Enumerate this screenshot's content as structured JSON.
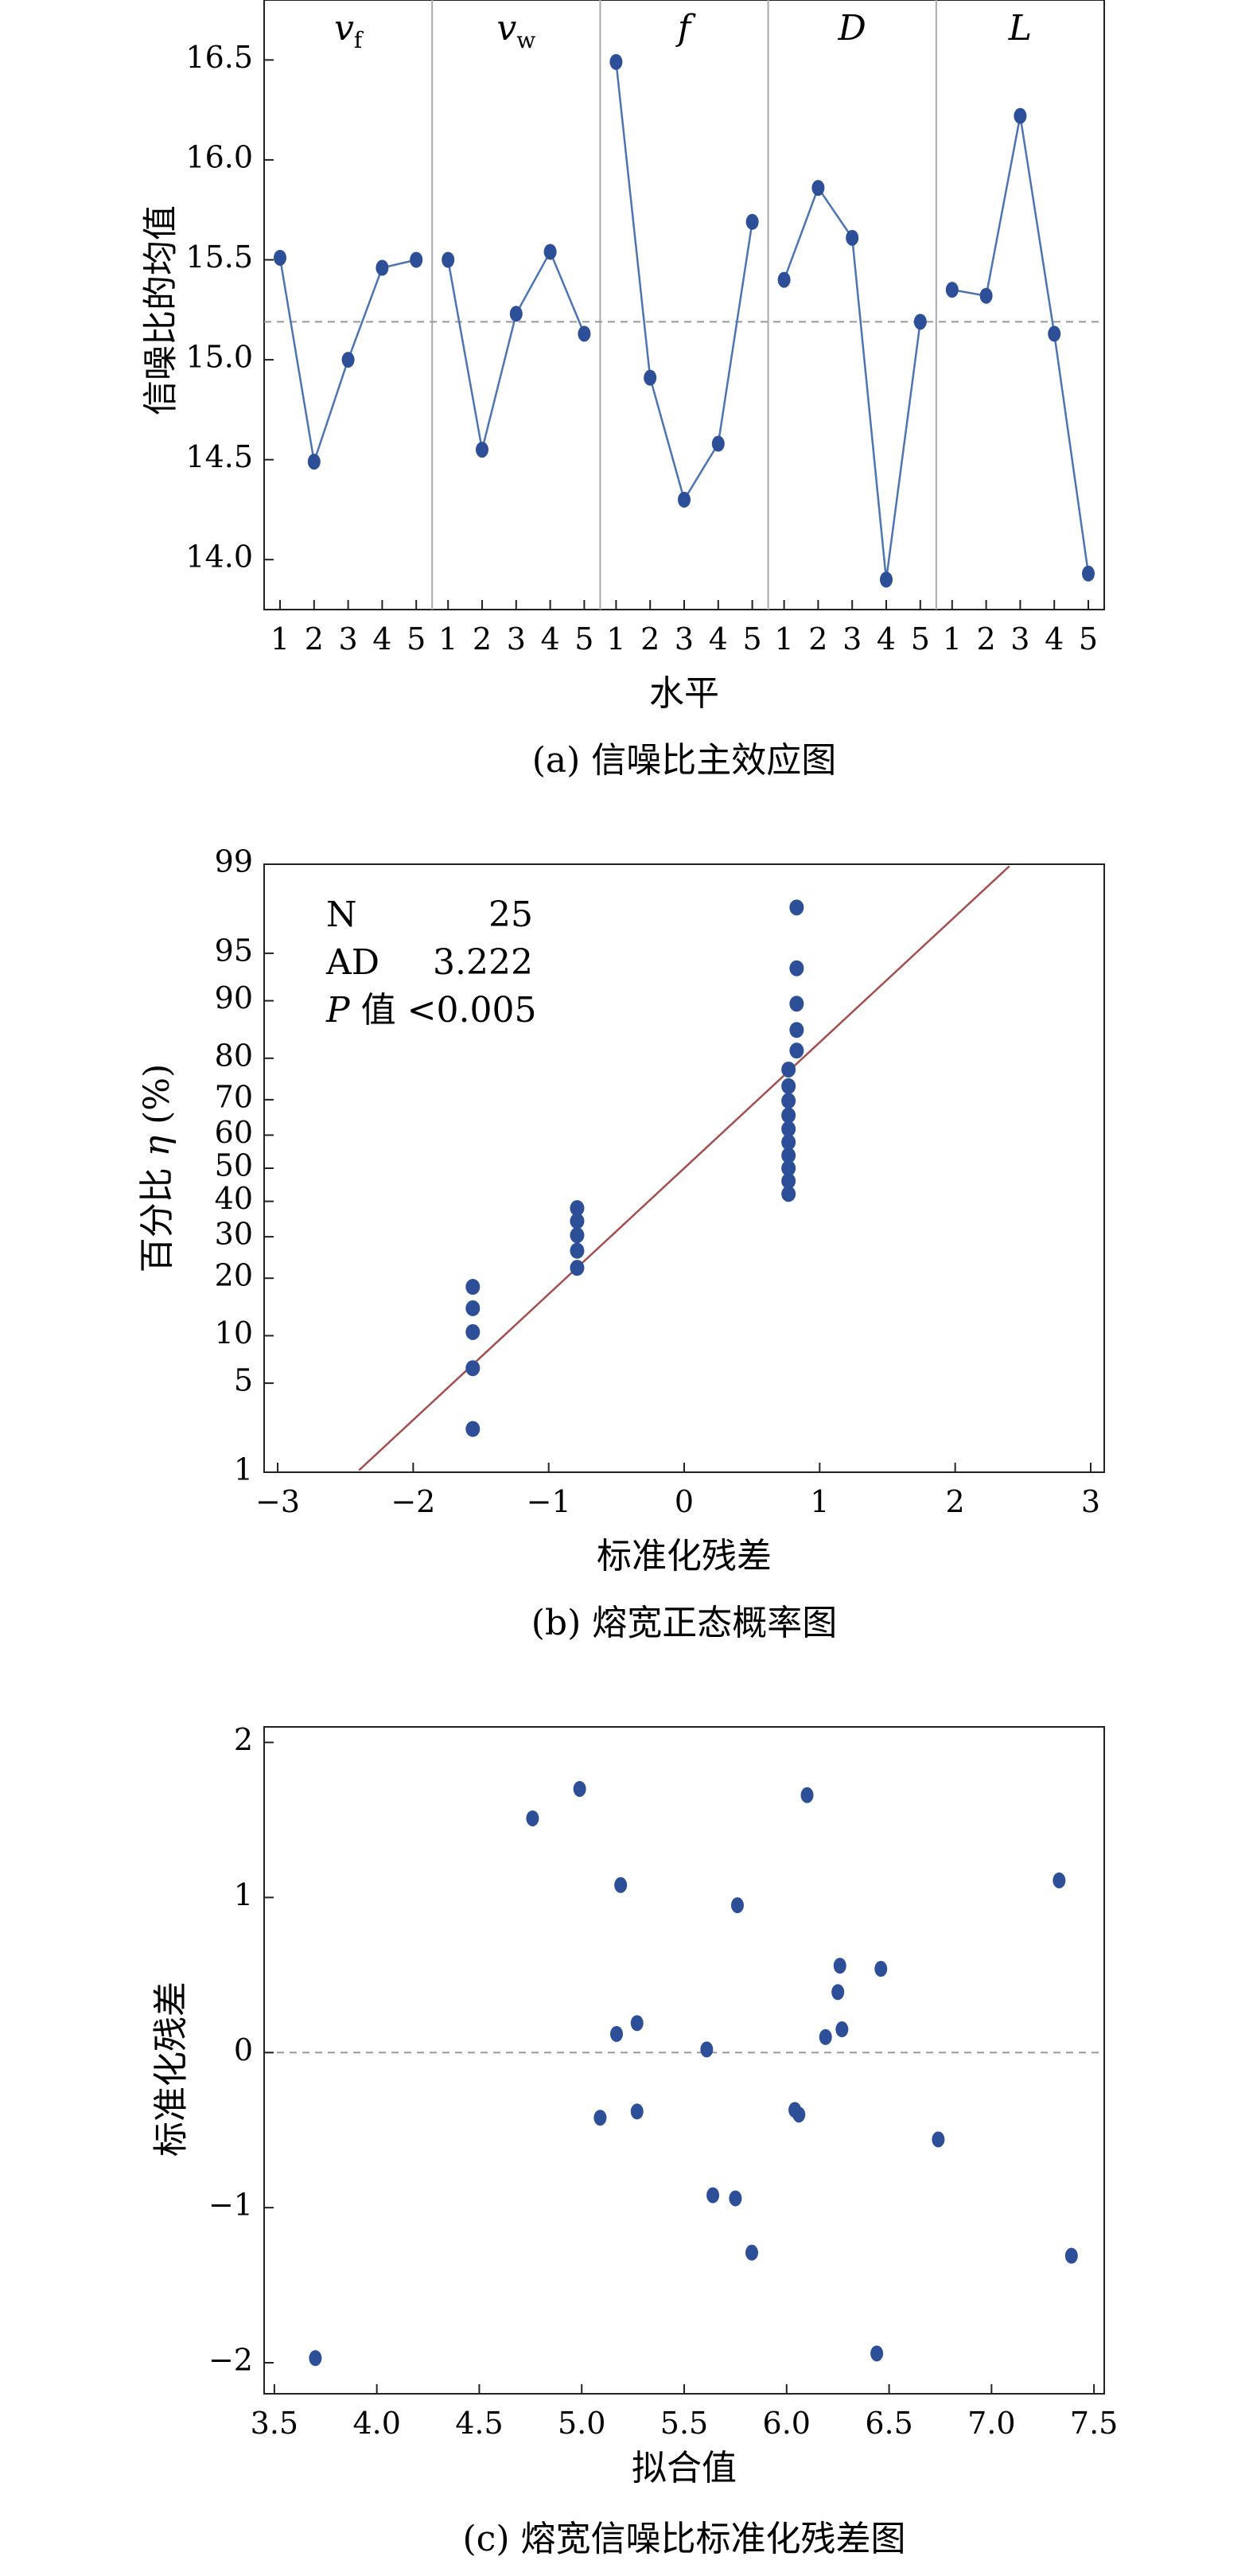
{
  "colors": {
    "marker": "#2d4f97",
    "line": "#4d74b0",
    "ref_line": "#999999",
    "fit_line": "#a05050",
    "divider": "#aaaaaa"
  },
  "chart_data": [
    {
      "type": "line",
      "panel": "a",
      "caption": "(a) 信噪比主效应图",
      "xlabel": "水平",
      "ylabel": "信噪比的均值",
      "ylim": [
        13.75,
        16.8
      ],
      "y_ticks": [
        "14.0",
        "14.5",
        "15.0",
        "15.5",
        "16.0",
        "16.5"
      ],
      "level_labels": [
        "1",
        "2",
        "3",
        "4",
        "5"
      ],
      "reference_line": 15.19,
      "factors": [
        {
          "name": "v",
          "sub": "f",
          "values": [
            15.51,
            14.49,
            15.0,
            15.46,
            15.5
          ]
        },
        {
          "name": "v",
          "sub": "w",
          "values": [
            15.5,
            14.55,
            15.23,
            15.54,
            15.13
          ]
        },
        {
          "name": "f",
          "sub": "",
          "values": [
            16.49,
            14.91,
            14.3,
            14.58,
            15.69
          ]
        },
        {
          "name": "D",
          "sub": "",
          "values": [
            15.4,
            15.86,
            15.61,
            13.9,
            15.19
          ]
        },
        {
          "name": "L",
          "sub": "",
          "values": [
            15.35,
            15.32,
            16.22,
            15.13,
            13.93
          ]
        }
      ]
    },
    {
      "type": "scatter",
      "panel": "b",
      "caption": "(b) 熔宽正态概率图",
      "xlabel": "标准化残差",
      "ylabel": "百分比",
      "ylabel_symbol": "η",
      "ylabel_unit": "(%)",
      "xlim": [
        -3.1,
        3.1
      ],
      "x_ticks": [
        -3,
        -2,
        -1,
        0,
        1,
        2,
        3
      ],
      "x_tick_labels": [
        "−3",
        "−2",
        "−1",
        "0",
        "1",
        "2",
        "3"
      ],
      "y_scale": "normal-probability",
      "y_ticks": [
        1,
        5,
        10,
        20,
        30,
        40,
        50,
        60,
        70,
        80,
        90,
        95,
        99
      ],
      "y_tick_labels": [
        "1",
        "5",
        "10",
        "20",
        "30",
        "40",
        "50",
        "60",
        "70",
        "80",
        "90",
        "95",
        "99"
      ],
      "stats": [
        {
          "label": "N",
          "value": "25"
        },
        {
          "label": "AD",
          "value": "3.222"
        },
        {
          "label": "P",
          "label_suffix": " 值",
          "value": "<0.005"
        }
      ],
      "fit_line": {
        "x": [
          -2.4,
          2.4
        ],
        "y": [
          1.04,
          98.96
        ]
      },
      "points": [
        {
          "x": -1.56,
          "y": [
            2.3,
            6.3,
            10.5,
            14.2,
            18.2
          ]
        },
        {
          "x": -0.79,
          "y": [
            22.3,
            26.4,
            30.4,
            34.3,
            38.0
          ]
        },
        {
          "x": 0.77,
          "y": [
            42.2,
            46.1,
            50.0,
            53.9,
            57.9,
            61.8,
            65.7,
            69.7,
            73.5,
            77.5
          ]
        },
        {
          "x": 0.83,
          "y": [
            81.6,
            85.5,
            89.6,
            93.7,
            97.7
          ]
        }
      ]
    },
    {
      "type": "scatter",
      "panel": "c",
      "caption": "(c) 熔宽信噪比标准化残差图",
      "xlabel": "拟合值",
      "ylabel": "标准化残差",
      "xlim": [
        3.45,
        7.55
      ],
      "ylim": [
        -2.2,
        2.1
      ],
      "x_ticks": [
        "3.5",
        "4.0",
        "4.5",
        "5.0",
        "5.5",
        "6.0",
        "6.5",
        "7.0",
        "7.5"
      ],
      "y_ticks": [
        -2,
        -1,
        0,
        1,
        2
      ],
      "y_tick_labels": [
        "−2",
        "−1",
        "0",
        "1",
        "2"
      ],
      "reference_line": 0,
      "points": [
        [
          3.7,
          -1.97
        ],
        [
          4.76,
          1.51
        ],
        [
          4.99,
          1.7
        ],
        [
          5.09,
          -0.42
        ],
        [
          5.17,
          0.12
        ],
        [
          5.19,
          1.08
        ],
        [
          5.27,
          0.19
        ],
        [
          5.27,
          -0.38
        ],
        [
          5.61,
          0.02
        ],
        [
          5.64,
          -0.92
        ],
        [
          5.75,
          -0.94
        ],
        [
          5.76,
          0.95
        ],
        [
          5.83,
          -1.29
        ],
        [
          6.04,
          -0.37
        ],
        [
          6.06,
          -0.4
        ],
        [
          6.1,
          1.66
        ],
        [
          6.19,
          0.1
        ],
        [
          6.25,
          0.39
        ],
        [
          6.26,
          0.56
        ],
        [
          6.27,
          0.15
        ],
        [
          6.44,
          -1.94
        ],
        [
          6.46,
          0.54
        ],
        [
          6.74,
          -0.56
        ],
        [
          7.33,
          1.11
        ],
        [
          7.39,
          -1.31
        ]
      ]
    }
  ]
}
